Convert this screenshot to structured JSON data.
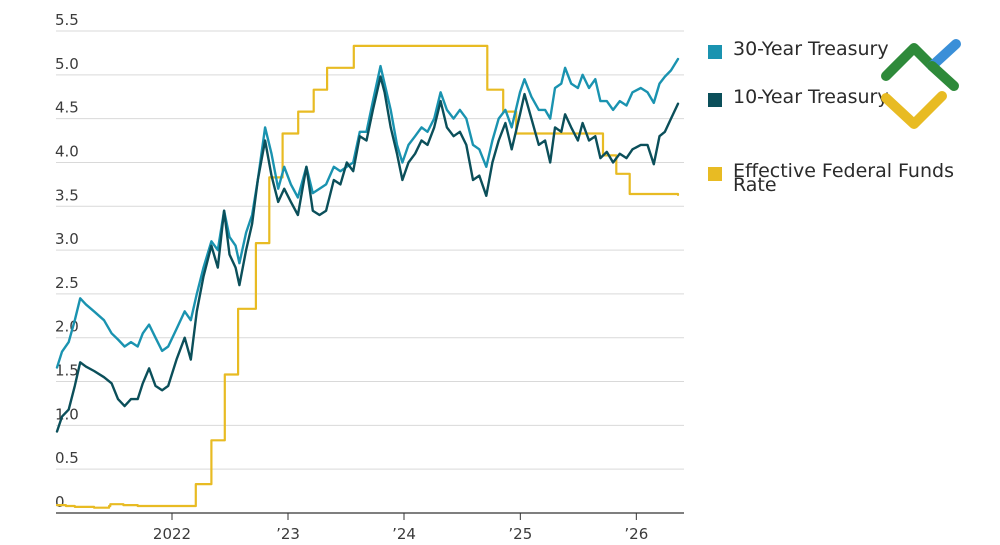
{
  "chart_data": {
    "type": "line",
    "title": "",
    "xlabel": "",
    "ylabel": "",
    "ylim": [
      0,
      5.5
    ],
    "xlim": [
      "2021-01-01",
      "2026-05-31"
    ],
    "yticks": [
      "0",
      "0.5",
      "1.0",
      "1.5",
      "2.0",
      "2.5",
      "3.0",
      "3.5",
      "4.0",
      "4.5",
      "5.0",
      "5.5"
    ],
    "xticks": [
      {
        "label": "2022",
        "date": "2022-01-01"
      },
      {
        "label": "’23",
        "date": "2023-01-01"
      },
      {
        "label": "’24",
        "date": "2024-01-01"
      },
      {
        "label": "’25",
        "date": "2025-01-01"
      },
      {
        "label": "’26",
        "date": "2026-01-01"
      }
    ],
    "grid": true,
    "legend_position": "right",
    "series": [
      {
        "name": "30-Year Treasury",
        "color": "#1a93b0",
        "shape": "line",
        "points": [
          [
            "2021-01-04",
            1.66
          ],
          [
            "2021-01-20",
            1.84
          ],
          [
            "2021-02-10",
            1.95
          ],
          [
            "2021-03-01",
            2.2
          ],
          [
            "2021-03-18",
            2.45
          ],
          [
            "2021-04-05",
            2.38
          ],
          [
            "2021-05-01",
            2.3
          ],
          [
            "2021-06-01",
            2.2
          ],
          [
            "2021-06-25",
            2.05
          ],
          [
            "2021-07-15",
            1.98
          ],
          [
            "2021-08-05",
            1.9
          ],
          [
            "2021-08-25",
            1.95
          ],
          [
            "2021-09-15",
            1.9
          ],
          [
            "2021-10-01",
            2.05
          ],
          [
            "2021-10-21",
            2.15
          ],
          [
            "2021-11-10",
            2.0
          ],
          [
            "2021-12-01",
            1.85
          ],
          [
            "2021-12-20",
            1.9
          ],
          [
            "2022-01-15",
            2.1
          ],
          [
            "2022-02-10",
            2.3
          ],
          [
            "2022-03-01",
            2.2
          ],
          [
            "2022-03-20",
            2.5
          ],
          [
            "2022-04-10",
            2.8
          ],
          [
            "2022-05-05",
            3.1
          ],
          [
            "2022-05-25",
            3.0
          ],
          [
            "2022-06-14",
            3.45
          ],
          [
            "2022-07-01",
            3.15
          ],
          [
            "2022-07-20",
            3.05
          ],
          [
            "2022-08-01",
            2.85
          ],
          [
            "2022-08-22",
            3.2
          ],
          [
            "2022-09-10",
            3.4
          ],
          [
            "2022-09-28",
            3.8
          ],
          [
            "2022-10-21",
            4.4
          ],
          [
            "2022-11-10",
            4.1
          ],
          [
            "2022-12-01",
            3.7
          ],
          [
            "2022-12-20",
            3.95
          ],
          [
            "2023-01-10",
            3.75
          ],
          [
            "2023-02-01",
            3.6
          ],
          [
            "2023-02-28",
            3.95
          ],
          [
            "2023-03-20",
            3.65
          ],
          [
            "2023-04-10",
            3.7
          ],
          [
            "2023-05-01",
            3.75
          ],
          [
            "2023-05-25",
            3.95
          ],
          [
            "2023-06-15",
            3.9
          ],
          [
            "2023-07-05",
            3.95
          ],
          [
            "2023-07-25",
            4.0
          ],
          [
            "2023-08-15",
            4.35
          ],
          [
            "2023-09-05",
            4.35
          ],
          [
            "2023-09-25",
            4.7
          ],
          [
            "2023-10-19",
            5.1
          ],
          [
            "2023-11-01",
            4.9
          ],
          [
            "2023-11-20",
            4.6
          ],
          [
            "2023-12-10",
            4.2
          ],
          [
            "2023-12-27",
            4.0
          ],
          [
            "2024-01-15",
            4.2
          ],
          [
            "2024-02-05",
            4.3
          ],
          [
            "2024-02-25",
            4.4
          ],
          [
            "2024-03-15",
            4.35
          ],
          [
            "2024-04-05",
            4.5
          ],
          [
            "2024-04-25",
            4.8
          ],
          [
            "2024-05-15",
            4.6
          ],
          [
            "2024-06-05",
            4.5
          ],
          [
            "2024-06-25",
            4.6
          ],
          [
            "2024-07-15",
            4.5
          ],
          [
            "2024-08-05",
            4.2
          ],
          [
            "2024-08-25",
            4.15
          ],
          [
            "2024-09-16",
            3.95
          ],
          [
            "2024-10-05",
            4.25
          ],
          [
            "2024-10-25",
            4.5
          ],
          [
            "2024-11-15",
            4.6
          ],
          [
            "2024-12-05",
            4.4
          ],
          [
            "2024-12-31",
            4.8
          ],
          [
            "2025-01-14",
            4.95
          ],
          [
            "2025-02-05",
            4.75
          ],
          [
            "2025-02-28",
            4.6
          ],
          [
            "2025-03-20",
            4.6
          ],
          [
            "2025-04-05",
            4.5
          ],
          [
            "2025-04-20",
            4.85
          ],
          [
            "2025-05-10",
            4.9
          ],
          [
            "2025-05-22",
            5.08
          ],
          [
            "2025-06-10",
            4.9
          ],
          [
            "2025-07-01",
            4.85
          ],
          [
            "2025-07-16",
            5.0
          ],
          [
            "2025-08-05",
            4.85
          ],
          [
            "2025-08-25",
            4.95
          ],
          [
            "2025-09-10",
            4.7
          ],
          [
            "2025-09-30",
            4.7
          ],
          [
            "2025-10-20",
            4.6
          ],
          [
            "2025-11-10",
            4.7
          ],
          [
            "2025-12-01",
            4.65
          ],
          [
            "2025-12-20",
            4.8
          ],
          [
            "2026-01-15",
            4.85
          ],
          [
            "2026-02-05",
            4.8
          ],
          [
            "2026-02-25",
            4.68
          ],
          [
            "2026-03-15",
            4.9
          ],
          [
            "2026-04-01",
            4.98
          ],
          [
            "2026-04-20",
            5.05
          ],
          [
            "2026-05-12",
            5.18
          ]
        ]
      },
      {
        "name": "10-Year Treasury",
        "color": "#0b4f5a",
        "shape": "line",
        "points": [
          [
            "2021-01-04",
            0.93
          ],
          [
            "2021-01-20",
            1.1
          ],
          [
            "2021-02-10",
            1.18
          ],
          [
            "2021-03-01",
            1.45
          ],
          [
            "2021-03-18",
            1.72
          ],
          [
            "2021-04-05",
            1.67
          ],
          [
            "2021-05-01",
            1.62
          ],
          [
            "2021-06-01",
            1.55
          ],
          [
            "2021-06-25",
            1.48
          ],
          [
            "2021-07-15",
            1.3
          ],
          [
            "2021-08-05",
            1.22
          ],
          [
            "2021-08-25",
            1.3
          ],
          [
            "2021-09-15",
            1.3
          ],
          [
            "2021-10-01",
            1.48
          ],
          [
            "2021-10-21",
            1.65
          ],
          [
            "2021-11-10",
            1.45
          ],
          [
            "2021-12-01",
            1.4
          ],
          [
            "2021-12-20",
            1.45
          ],
          [
            "2022-01-15",
            1.75
          ],
          [
            "2022-02-10",
            2.0
          ],
          [
            "2022-03-01",
            1.75
          ],
          [
            "2022-03-20",
            2.3
          ],
          [
            "2022-04-10",
            2.7
          ],
          [
            "2022-05-05",
            3.05
          ],
          [
            "2022-05-25",
            2.8
          ],
          [
            "2022-06-14",
            3.45
          ],
          [
            "2022-07-01",
            2.95
          ],
          [
            "2022-07-20",
            2.8
          ],
          [
            "2022-08-01",
            2.6
          ],
          [
            "2022-08-22",
            3.0
          ],
          [
            "2022-09-10",
            3.3
          ],
          [
            "2022-09-28",
            3.8
          ],
          [
            "2022-10-21",
            4.25
          ],
          [
            "2022-11-10",
            3.85
          ],
          [
            "2022-12-01",
            3.55
          ],
          [
            "2022-12-20",
            3.7
          ],
          [
            "2023-01-10",
            3.55
          ],
          [
            "2023-02-01",
            3.4
          ],
          [
            "2023-02-28",
            3.95
          ],
          [
            "2023-03-20",
            3.45
          ],
          [
            "2023-04-10",
            3.4
          ],
          [
            "2023-05-01",
            3.45
          ],
          [
            "2023-05-25",
            3.8
          ],
          [
            "2023-06-15",
            3.75
          ],
          [
            "2023-07-05",
            4.0
          ],
          [
            "2023-07-25",
            3.9
          ],
          [
            "2023-08-15",
            4.3
          ],
          [
            "2023-09-05",
            4.25
          ],
          [
            "2023-09-25",
            4.6
          ],
          [
            "2023-10-19",
            4.98
          ],
          [
            "2023-11-01",
            4.8
          ],
          [
            "2023-11-20",
            4.4
          ],
          [
            "2023-12-10",
            4.1
          ],
          [
            "2023-12-27",
            3.8
          ],
          [
            "2024-01-15",
            4.0
          ],
          [
            "2024-02-05",
            4.1
          ],
          [
            "2024-02-25",
            4.25
          ],
          [
            "2024-03-15",
            4.2
          ],
          [
            "2024-04-05",
            4.4
          ],
          [
            "2024-04-25",
            4.7
          ],
          [
            "2024-05-15",
            4.4
          ],
          [
            "2024-06-05",
            4.3
          ],
          [
            "2024-06-25",
            4.35
          ],
          [
            "2024-07-15",
            4.2
          ],
          [
            "2024-08-05",
            3.8
          ],
          [
            "2024-08-25",
            3.85
          ],
          [
            "2024-09-16",
            3.62
          ],
          [
            "2024-10-05",
            4.0
          ],
          [
            "2024-10-25",
            4.25
          ],
          [
            "2024-11-15",
            4.45
          ],
          [
            "2024-12-05",
            4.15
          ],
          [
            "2024-12-31",
            4.55
          ],
          [
            "2025-01-14",
            4.78
          ],
          [
            "2025-02-05",
            4.5
          ],
          [
            "2025-02-28",
            4.2
          ],
          [
            "2025-03-20",
            4.25
          ],
          [
            "2025-04-05",
            4.0
          ],
          [
            "2025-04-20",
            4.4
          ],
          [
            "2025-05-10",
            4.35
          ],
          [
            "2025-05-22",
            4.55
          ],
          [
            "2025-06-10",
            4.4
          ],
          [
            "2025-07-01",
            4.25
          ],
          [
            "2025-07-16",
            4.45
          ],
          [
            "2025-08-05",
            4.25
          ],
          [
            "2025-08-25",
            4.3
          ],
          [
            "2025-09-10",
            4.05
          ],
          [
            "2025-09-30",
            4.12
          ],
          [
            "2025-10-20",
            4.0
          ],
          [
            "2025-11-10",
            4.1
          ],
          [
            "2025-12-01",
            4.05
          ],
          [
            "2025-12-20",
            4.15
          ],
          [
            "2026-01-15",
            4.2
          ],
          [
            "2026-02-05",
            4.2
          ],
          [
            "2026-02-25",
            3.98
          ],
          [
            "2026-03-15",
            4.3
          ],
          [
            "2026-04-01",
            4.35
          ],
          [
            "2026-04-20",
            4.5
          ],
          [
            "2026-05-12",
            4.67
          ]
        ]
      },
      {
        "name": "Effective Federal Funds Rate",
        "color": "#e8bb23",
        "shape": "step",
        "points": [
          [
            "2021-01-04",
            0.09
          ],
          [
            "2021-02-01",
            0.08
          ],
          [
            "2021-03-01",
            0.07
          ],
          [
            "2021-05-01",
            0.06
          ],
          [
            "2021-06-17",
            0.08
          ],
          [
            "2021-06-21",
            0.1
          ],
          [
            "2021-08-01",
            0.09
          ],
          [
            "2021-09-15",
            0.08
          ],
          [
            "2022-03-17",
            0.33
          ],
          [
            "2022-05-05",
            0.83
          ],
          [
            "2022-06-16",
            1.58
          ],
          [
            "2022-07-28",
            2.33
          ],
          [
            "2022-09-22",
            3.08
          ],
          [
            "2022-11-03",
            3.83
          ],
          [
            "2022-12-15",
            4.33
          ],
          [
            "2023-02-02",
            4.58
          ],
          [
            "2023-03-23",
            4.83
          ],
          [
            "2023-05-04",
            5.08
          ],
          [
            "2023-07-27",
            5.33
          ],
          [
            "2024-09-19",
            4.83
          ],
          [
            "2024-11-08",
            4.58
          ],
          [
            "2024-12-19",
            4.33
          ],
          [
            "2025-09-18",
            4.08
          ],
          [
            "2025-10-30",
            3.87
          ],
          [
            "2025-12-11",
            3.64
          ],
          [
            "2026-05-12",
            3.63
          ]
        ]
      }
    ]
  },
  "legend": {
    "items": [
      {
        "label": "30-Year Treasury",
        "color": "#1a93b0"
      },
      {
        "label": "10-Year Treasury",
        "color": "#0b4f5a"
      },
      {
        "label": "Effective Federal Funds Rate",
        "color": "#e8bb23"
      }
    ]
  },
  "logo": {
    "name": "chevron-logo-icon",
    "colors": {
      "green": "#2e8a3a",
      "blue": "#3a8fd8",
      "gold": "#e8bb23"
    }
  }
}
